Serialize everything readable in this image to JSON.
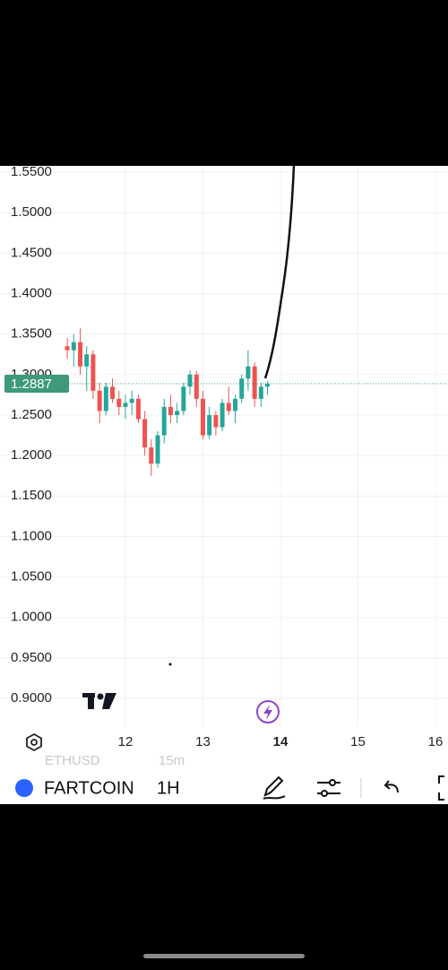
{
  "chart_data": {
    "type": "candlestick",
    "x": [
      11.25,
      11.333,
      11.417,
      11.5,
      11.583,
      11.667,
      11.75,
      11.833,
      11.917,
      12.0,
      12.083,
      12.167,
      12.25,
      12.333,
      12.417,
      12.5,
      12.583,
      12.667,
      12.75,
      12.833,
      12.917,
      13.0,
      13.083,
      13.167,
      13.25,
      13.333,
      13.417,
      13.5,
      13.583,
      13.667,
      13.75,
      13.833
    ],
    "open": [
      1.335,
      1.33,
      1.34,
      1.31,
      1.325,
      1.28,
      1.255,
      1.285,
      1.27,
      1.26,
      1.265,
      1.27,
      1.245,
      1.21,
      1.19,
      1.225,
      1.26,
      1.25,
      1.255,
      1.285,
      1.3,
      1.27,
      1.225,
      1.25,
      1.235,
      1.265,
      1.255,
      1.27,
      1.295,
      1.31,
      1.27,
      1.285
    ],
    "high": [
      1.345,
      1.35,
      1.357,
      1.335,
      1.33,
      1.29,
      1.29,
      1.295,
      1.28,
      1.275,
      1.28,
      1.275,
      1.255,
      1.22,
      1.23,
      1.27,
      1.275,
      1.265,
      1.29,
      1.305,
      1.305,
      1.28,
      1.26,
      1.255,
      1.27,
      1.285,
      1.275,
      1.3,
      1.33,
      1.315,
      1.29,
      1.292
    ],
    "low": [
      1.32,
      1.31,
      1.3,
      1.28,
      1.27,
      1.24,
      1.25,
      1.265,
      1.25,
      1.245,
      1.25,
      1.24,
      1.2,
      1.175,
      1.185,
      1.215,
      1.24,
      1.24,
      1.25,
      1.275,
      1.26,
      1.22,
      1.22,
      1.225,
      1.23,
      1.25,
      1.24,
      1.265,
      1.28,
      1.26,
      1.26,
      1.275
    ],
    "close": [
      1.33,
      1.34,
      1.31,
      1.325,
      1.28,
      1.255,
      1.285,
      1.27,
      1.26,
      1.265,
      1.27,
      1.245,
      1.21,
      1.19,
      1.225,
      1.26,
      1.25,
      1.255,
      1.285,
      1.3,
      1.27,
      1.225,
      1.25,
      1.235,
      1.265,
      1.255,
      1.27,
      1.295,
      1.31,
      1.27,
      1.285,
      1.2887
    ],
    "up_color": "#26a69a",
    "down_color": "#ef5350",
    "current_price": 1.2887,
    "current_price_label": "1.2887",
    "current_price_color": "#3d9a7a",
    "xlim": [
      10.382,
      16.162
    ],
    "xticks": [
      12,
      13,
      14,
      15,
      16
    ],
    "ylim": [
      0.8657,
      1.5578
    ],
    "yticks": [
      {
        "value": 0.9,
        "label": "0.9000"
      },
      {
        "value": 0.95,
        "label": "0.9500"
      },
      {
        "value": 1.0,
        "label": "1.0000"
      },
      {
        "value": 1.05,
        "label": "1.0500"
      },
      {
        "value": 1.1,
        "label": "1.1000"
      },
      {
        "value": 1.15,
        "label": "1.1500"
      },
      {
        "value": 1.2,
        "label": "1.2000"
      },
      {
        "value": 1.25,
        "label": "1.2500"
      },
      {
        "value": 1.3,
        "label": "1.3000"
      },
      {
        "value": 1.35,
        "label": "1.3500"
      },
      {
        "value": 1.4,
        "label": "1.4000"
      },
      {
        "value": 1.45,
        "label": "1.4500"
      },
      {
        "value": 1.5,
        "label": "1.5000"
      },
      {
        "value": 1.55,
        "label": "1.5500"
      }
    ],
    "grid": true
  },
  "toolbar": {
    "symbol": "FARTCOIN",
    "interval": "1H",
    "faded_symbol": "ETHUSD",
    "faded_interval": "15m"
  }
}
